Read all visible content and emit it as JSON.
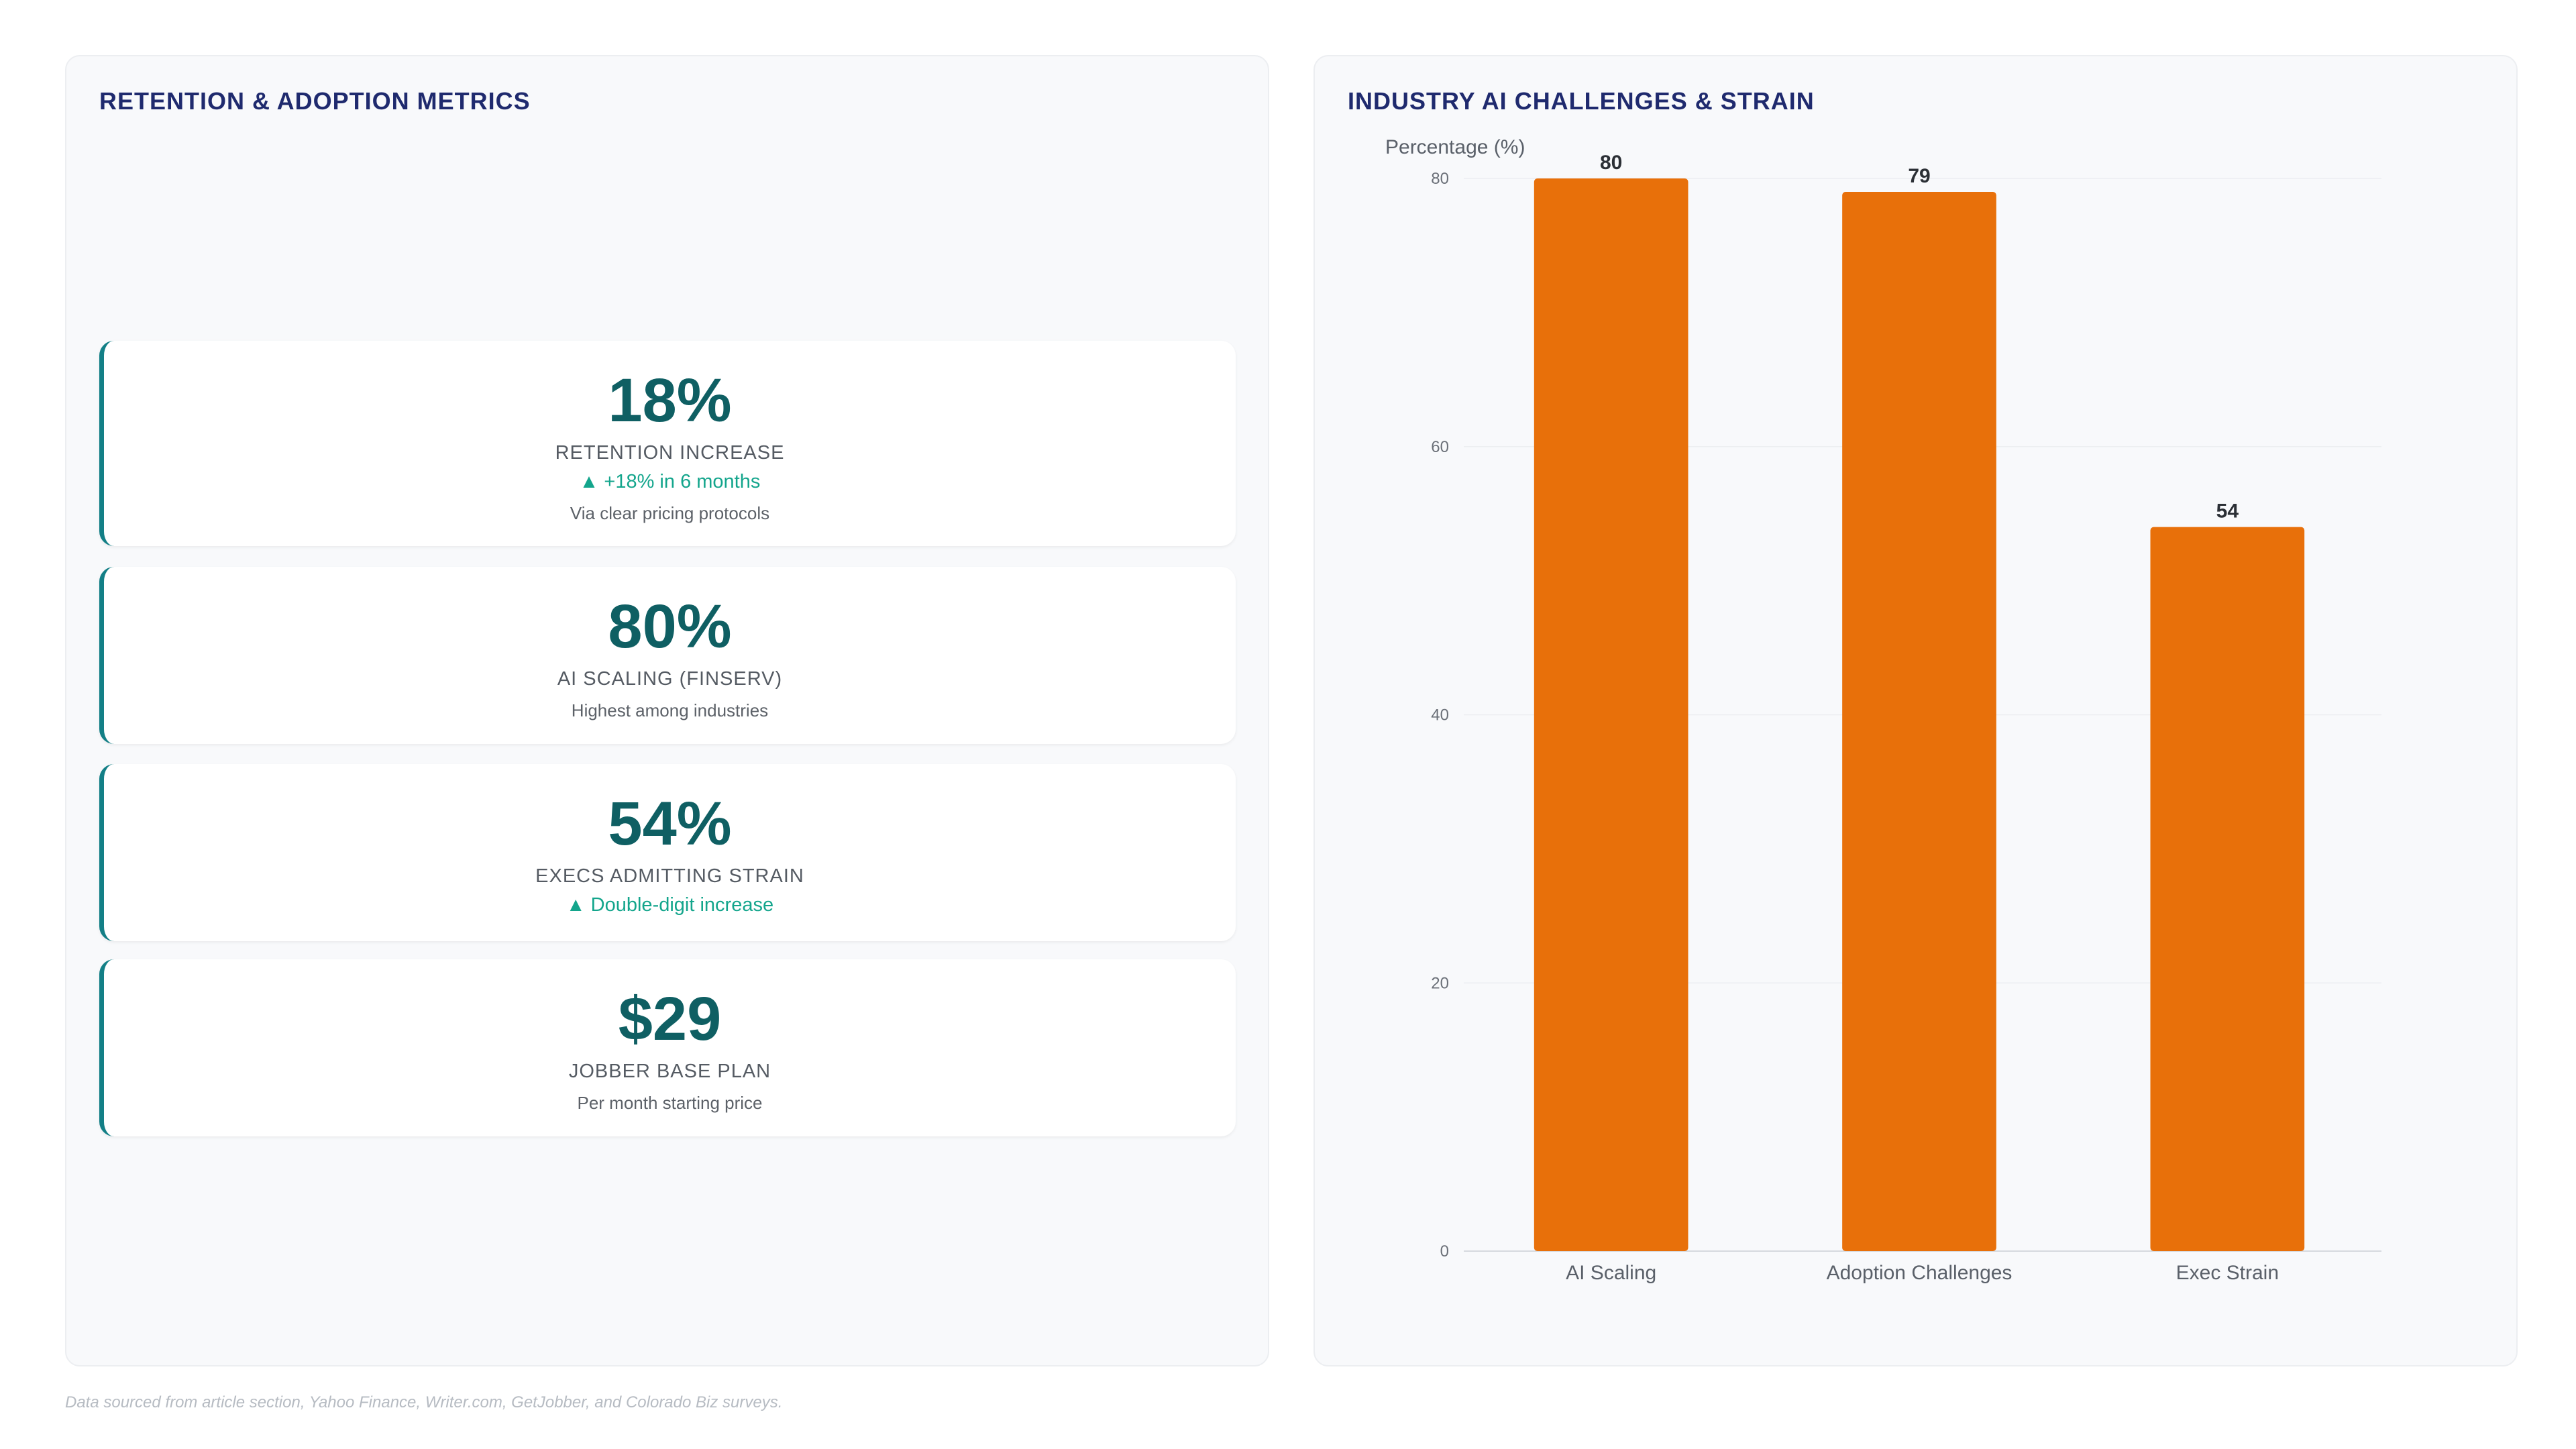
{
  "left_panel": {
    "title": "RETENTION & ADOPTION METRICS",
    "metrics": [
      {
        "value": "18%",
        "label": "RETENTION INCREASE",
        "trend": "▲ +18% in 6 months",
        "note": "Via clear pricing protocols"
      },
      {
        "value": "80%",
        "label": "AI SCALING (FINSERV)",
        "trend": "",
        "note": "Highest among industries"
      },
      {
        "value": "54%",
        "label": "EXECS ADMITTING STRAIN",
        "trend": "▲ Double-digit increase",
        "note": ""
      },
      {
        "value": "$29",
        "label": "JOBBER BASE PLAN",
        "trend": "",
        "note": "Per month starting price"
      }
    ]
  },
  "right_panel": {
    "title": "INDUSTRY AI CHALLENGES & STRAIN"
  },
  "chart_data": {
    "type": "bar",
    "categories": [
      "AI Scaling",
      "Adoption Challenges",
      "Exec Strain"
    ],
    "values": [
      80,
      79,
      54
    ],
    "data_labels": [
      "80",
      "79",
      "54"
    ],
    "ylabel": "Percentage (%)",
    "xlabel": "",
    "ylim": [
      0,
      80
    ],
    "yticks": [
      0,
      20,
      40,
      60,
      80
    ],
    "grid": true,
    "legend": "none",
    "bar_color": "#e8700a"
  },
  "footer": {
    "text": "Data sourced from article section, Yahoo Finance, Writer.com, GetJobber, and Colorado Biz surveys."
  }
}
